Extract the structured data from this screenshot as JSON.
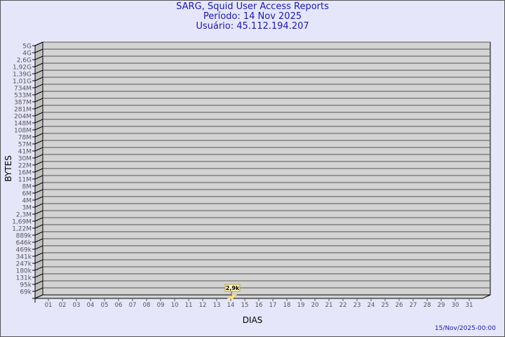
{
  "title_lines": [
    "SARG, Squid User Access Reports",
    "Período: 14 Nov 2025",
    "Usuário: 45.112.194.207"
  ],
  "footer_timestamp": "15/Nov/2025-00:00",
  "colors": {
    "background": "#e6e6fa",
    "plot": "#d3d3d3",
    "bar": "#ffe98a",
    "title": "#1a1aa8"
  },
  "chart_data": {
    "type": "bar",
    "style": "3d",
    "xlabel": "DIAS",
    "ylabel": "BYTES",
    "y_scale": "log",
    "grid": true,
    "x_ticks": [
      "01",
      "02",
      "03",
      "04",
      "05",
      "06",
      "07",
      "08",
      "09",
      "10",
      "11",
      "12",
      "13",
      "14",
      "15",
      "16",
      "17",
      "18",
      "19",
      "20",
      "21",
      "22",
      "23",
      "24",
      "25",
      "26",
      "27",
      "28",
      "29",
      "30",
      "31"
    ],
    "y_ticks": [
      "5G",
      "4G",
      "2,6G",
      "1,92G",
      "1,39G",
      "1,01G",
      "734M",
      "533M",
      "387M",
      "281M",
      "204M",
      "148M",
      "108M",
      "78M",
      "57M",
      "41M",
      "30M",
      "22M",
      "16M",
      "11M",
      "8M",
      "6M",
      "4M",
      "3M",
      "2,3M",
      "1,69M",
      "1,22M",
      "889k",
      "646k",
      "469k",
      "341k",
      "247k",
      "180k",
      "131k",
      "95k",
      "69k"
    ],
    "bars": [
      {
        "x": "14",
        "value": 2900,
        "label": "2,9k"
      }
    ]
  }
}
